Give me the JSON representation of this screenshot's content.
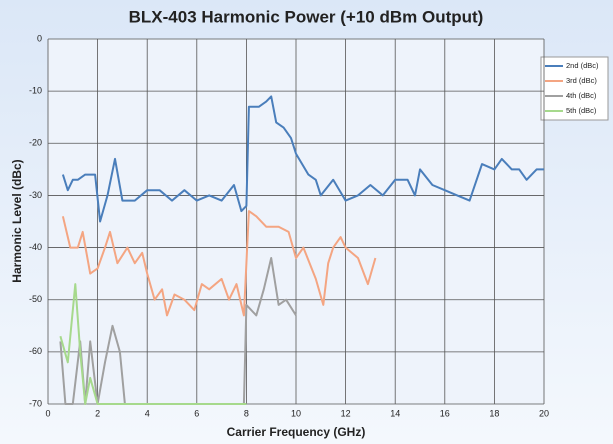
{
  "chart_data": {
    "type": "line",
    "title": "BLX-403 Harmonic Power (+10 dBm Output)",
    "x_label": "Carrier Frequency (GHz)",
    "y_label": "Harmonic Level (dBc)",
    "xlim": [
      0,
      20
    ],
    "xticks": [
      0,
      2,
      4,
      6,
      8,
      10,
      12,
      14,
      16,
      18,
      20
    ],
    "ylim": [
      -70,
      0
    ],
    "yticks": [
      0,
      -10,
      -20,
      -30,
      -40,
      -50,
      -60,
      -70
    ],
    "grid": true,
    "legend": "right",
    "series": [
      {
        "name": "2nd (dBc)",
        "color": "#4a7ebb",
        "x": [
          0.6,
          0.8,
          1.0,
          1.2,
          1.5,
          1.9,
          2.1,
          2.4,
          2.7,
          3.0,
          3.5,
          4.0,
          4.5,
          5.0,
          5.5,
          6.0,
          6.5,
          7.0,
          7.5,
          7.8,
          8.0,
          8.1,
          8.5,
          8.8,
          9.0,
          9.2,
          9.5,
          9.8,
          10.0,
          10.5,
          10.8,
          11.0,
          11.5,
          12.0,
          12.5,
          13.0,
          13.5,
          14.0,
          14.5,
          14.8,
          15.0,
          15.5,
          16.0,
          16.5,
          17.0,
          17.5,
          18.0,
          18.3,
          18.7,
          19.0,
          19.3,
          19.7,
          20.0
        ],
        "values": [
          -26,
          -29,
          -27,
          -27,
          -26,
          -26,
          -35,
          -30,
          -23,
          -31,
          -31,
          -29,
          -29,
          -31,
          -29,
          -31,
          -30,
          -31,
          -28,
          -33,
          -32,
          -13,
          -13,
          -12,
          -11,
          -16,
          -17,
          -19,
          -22,
          -26,
          -27,
          -30,
          -27,
          -31,
          -30,
          -28,
          -30,
          -27,
          -27,
          -30,
          -25,
          -28,
          -29,
          -30,
          -31,
          -24,
          -25,
          -23,
          -25,
          -25,
          -27,
          -25,
          -25
        ]
      },
      {
        "name": "3rd (dBc)",
        "color": "#f4a582",
        "x": [
          0.6,
          0.9,
          1.2,
          1.4,
          1.7,
          2.0,
          2.3,
          2.5,
          2.8,
          3.2,
          3.5,
          3.8,
          4.0,
          4.3,
          4.6,
          4.8,
          5.1,
          5.5,
          5.9,
          6.2,
          6.5,
          7.0,
          7.3,
          7.6,
          7.9,
          8.1,
          8.4,
          8.8,
          9.3,
          9.7,
          10.0,
          10.3,
          10.8,
          11.1,
          11.3,
          11.5,
          11.8,
          12.0,
          12.5,
          12.9,
          13.2
        ],
        "values": [
          -34,
          -40,
          -40,
          -37,
          -45,
          -44,
          -40,
          -37,
          -43,
          -40,
          -43,
          -41,
          -45,
          -50,
          -48,
          -53,
          -49,
          -50,
          -52,
          -47,
          -48,
          -46,
          -50,
          -47,
          -53,
          -33,
          -34,
          -36,
          -36,
          -37,
          -42,
          -40,
          -46,
          -51,
          -43,
          -40,
          -38,
          -40,
          -42,
          -47,
          -42
        ]
      },
      {
        "name": "4th (dBc)",
        "color": "#a0a0a0",
        "x": [
          0.5,
          0.7,
          1.0,
          1.3,
          1.5,
          1.7,
          2.0,
          2.3,
          2.6,
          2.9,
          3.1,
          7.9,
          8.0,
          8.4,
          8.7,
          9.0,
          9.3,
          9.6,
          10.0
        ],
        "values": [
          -58,
          -70,
          -70,
          -58,
          -70,
          -58,
          -70,
          -62,
          -55,
          -60,
          -70,
          -70,
          -51,
          -53,
          -48,
          -42,
          -51,
          -50,
          -53
        ]
      },
      {
        "name": "5th (dBc)",
        "color": "#a6d98c",
        "x": [
          0.5,
          0.8,
          1.1,
          1.3,
          1.5,
          1.7,
          2.0,
          8.0
        ],
        "values": [
          -57,
          -62,
          -47,
          -60,
          -70,
          -65,
          -70,
          -70
        ]
      }
    ]
  }
}
